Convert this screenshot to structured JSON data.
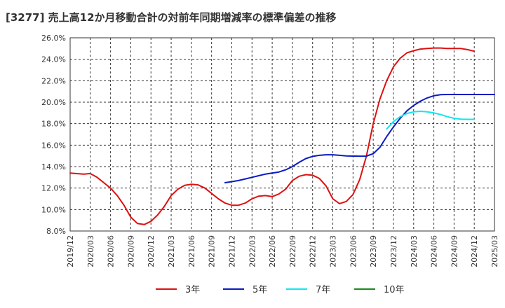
{
  "chart_data": {
    "type": "line",
    "title": "[3277]  売上高12か月移動合計の対前年同期増減率の標準偏差の推移",
    "xlabel": "",
    "ylabel": "",
    "ylim": [
      8.0,
      26.0
    ],
    "yticks": [
      "8.0%",
      "10.0%",
      "12.0%",
      "14.0%",
      "16.0%",
      "18.0%",
      "20.0%",
      "22.0%",
      "24.0%",
      "26.0%"
    ],
    "xticks": [
      "2019/12",
      "2020/03",
      "2020/06",
      "2020/09",
      "2020/12",
      "2021/03",
      "2021/06",
      "2021/09",
      "2021/12",
      "2022/03",
      "2022/06",
      "2022/09",
      "2022/12",
      "2023/03",
      "2023/06",
      "2023/09",
      "2023/12",
      "2024/03",
      "2024/06",
      "2024/09",
      "2024/12",
      "2025/03"
    ],
    "grid": true,
    "legend_position": "bottom",
    "series": [
      {
        "name": "3年",
        "color": "#dd1111",
        "start": "2019/12",
        "values": [
          13.4,
          13.35,
          13.3,
          13.35,
          13.0,
          12.5,
          12.0,
          11.3,
          10.4,
          9.3,
          8.7,
          8.6,
          8.9,
          9.5,
          10.3,
          11.3,
          11.9,
          12.25,
          12.35,
          12.3,
          12.0,
          11.5,
          11.0,
          10.6,
          10.4,
          10.4,
          10.6,
          11.0,
          11.25,
          11.3,
          11.2,
          11.45,
          11.9,
          12.7,
          13.1,
          13.25,
          13.2,
          12.9,
          12.2,
          11.0,
          10.55,
          10.75,
          11.4,
          12.8,
          15.0,
          18.0,
          20.3,
          22.0,
          23.3,
          24.1,
          24.6,
          24.8,
          24.95,
          25.0,
          25.05,
          25.05,
          25.0,
          25.0,
          25.0,
          24.9,
          24.75
        ]
      },
      {
        "name": "5年",
        "color": "#0a1bc2",
        "start": "2021/11",
        "values": [
          12.5,
          12.6,
          12.7,
          12.85,
          13.0,
          13.15,
          13.3,
          13.4,
          13.5,
          13.7,
          14.0,
          14.4,
          14.75,
          14.95,
          15.05,
          15.1,
          15.1,
          15.05,
          15.0,
          14.98,
          14.97,
          14.98,
          15.2,
          15.8,
          16.8,
          17.7,
          18.5,
          19.2,
          19.7,
          20.1,
          20.4,
          20.6,
          20.7,
          20.72,
          20.72,
          20.72,
          20.72,
          20.72,
          20.72,
          20.72,
          20.72
        ]
      },
      {
        "name": "7年",
        "color": "#11e6f0",
        "start": "2023/11",
        "values": [
          17.5,
          18.2,
          18.65,
          18.95,
          19.1,
          19.15,
          19.1,
          19.0,
          18.85,
          18.65,
          18.5,
          18.42,
          18.4,
          18.4
        ]
      },
      {
        "name": "10年",
        "color": "#1a8a1a",
        "start": "2025/03",
        "values": []
      }
    ]
  }
}
